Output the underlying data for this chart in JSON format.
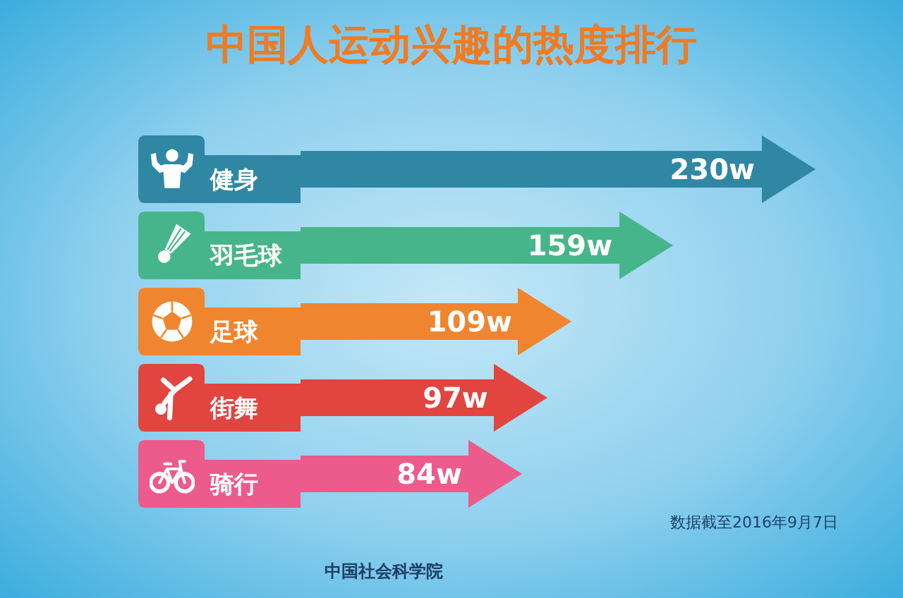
{
  "chart_data": {
    "type": "bar",
    "orientation": "horizontal",
    "title": "中国人运动兴趣的热度排行",
    "categories": [
      "健身",
      "羽毛球",
      "足球",
      "街舞",
      "骑行"
    ],
    "values": [
      230,
      159,
      109,
      97,
      84
    ],
    "value_labels": [
      "230w",
      "159w",
      "109w",
      "97w",
      "84w"
    ],
    "colors": [
      "#2f87a3",
      "#47b58b",
      "#f0852f",
      "#e2443f",
      "#ec5b8b"
    ],
    "annotations": [
      "数据截至2016年9月7日",
      "中国社会科学院"
    ]
  }
}
